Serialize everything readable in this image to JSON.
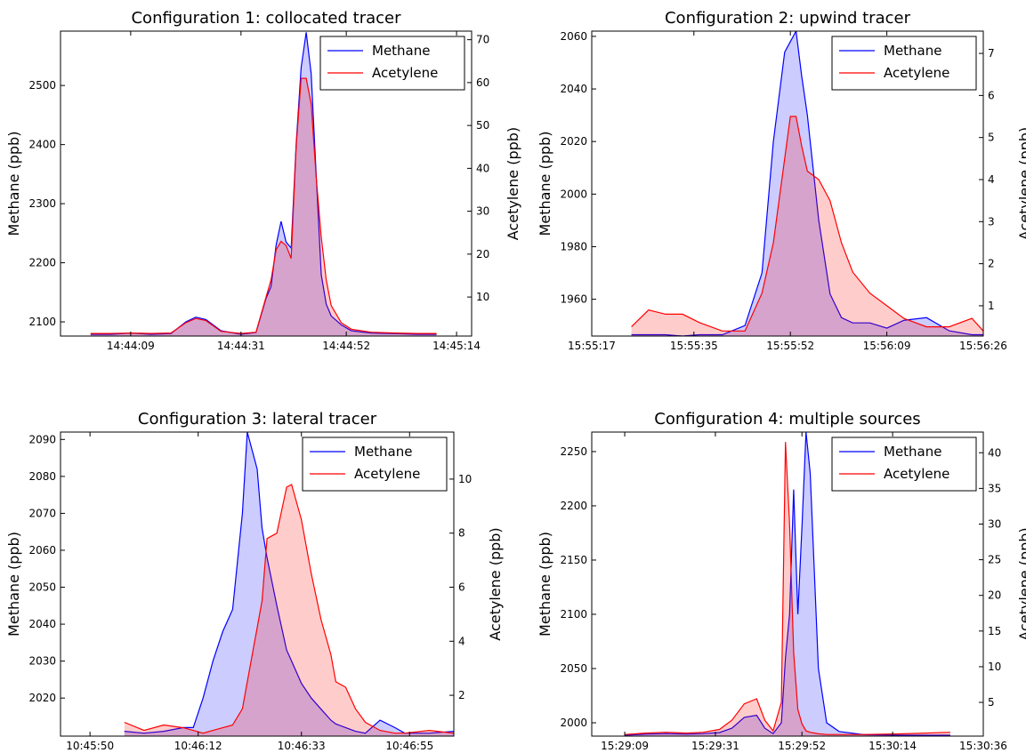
{
  "chart_data": [
    {
      "type": "area-twin",
      "title": "Configuration 1: collocated tracer",
      "ylabel": "Methane (ppb)",
      "y2label": "Acetylene (ppb)",
      "legend": "upper right",
      "x": [
        "14:44:01",
        "14:44:05",
        "14:44:09",
        "14:44:13",
        "14:44:17",
        "14:44:20",
        "14:44:22",
        "14:44:24",
        "14:44:27",
        "14:44:31",
        "14:44:34",
        "14:44:36",
        "14:44:37",
        "14:44:38",
        "14:44:39",
        "14:44:40",
        "14:44:41",
        "14:44:42",
        "14:44:43",
        "14:44:44",
        "14:44:45",
        "14:44:46",
        "14:44:47",
        "14:44:48",
        "14:44:49",
        "14:44:51",
        "14:44:53",
        "14:44:57",
        "14:45:02",
        "14:45:06",
        "14:45:10"
      ],
      "series": [
        {
          "name": "Methane",
          "color": "#0000ff",
          "values": [
            2079,
            2079,
            2081,
            2079,
            2080,
            2100,
            2108,
            2104,
            2085,
            2079,
            2082,
            2140,
            2160,
            2230,
            2270,
            2235,
            2225,
            2400,
            2530,
            2590,
            2520,
            2350,
            2180,
            2130,
            2110,
            2095,
            2085,
            2081,
            2080,
            2079,
            2079
          ]
        },
        {
          "name": "Acetylene",
          "color": "#ff0000",
          "axis": "y2",
          "values": [
            1.5,
            1.5,
            1.6,
            1.5,
            1.6,
            4,
            5,
            4.5,
            2,
            1.5,
            1.8,
            10,
            14,
            21,
            23,
            22,
            19,
            45,
            61,
            61,
            55,
            38,
            24,
            14,
            8,
            4,
            2.5,
            1.8,
            1.6,
            1.5,
            1.5
          ]
        }
      ],
      "xlim": [
        "14:43:55",
        "14:45:17"
      ],
      "xticks": [
        "14:44:09",
        "14:44:31",
        "14:44:52",
        "14:45:14"
      ],
      "ylim": [
        2076,
        2592
      ],
      "yticks": [
        2100,
        2200,
        2300,
        2400,
        2500
      ],
      "y2lim": [
        0.9,
        72
      ],
      "y2ticks": [
        10,
        20,
        30,
        40,
        50,
        60,
        70
      ]
    },
    {
      "type": "area-twin",
      "title": "Configuration 2: upwind tracer",
      "ylabel": "Methane (ppb)",
      "y2label": "Acetylene (ppb)",
      "legend": "upper right",
      "x": [
        "15:55:24",
        "15:55:27",
        "15:55:30",
        "15:55:33",
        "15:55:36",
        "15:55:40",
        "15:55:44",
        "15:55:47",
        "15:55:49",
        "15:55:51",
        "15:55:52",
        "15:55:53",
        "15:55:54",
        "15:55:55",
        "15:55:57",
        "15:55:59",
        "15:56:01",
        "15:56:03",
        "15:56:06",
        "15:56:09",
        "15:56:12",
        "15:56:16",
        "15:56:20",
        "15:56:24",
        "15:56:26"
      ],
      "series": [
        {
          "name": "Methane",
          "color": "#0000ff",
          "values": [
            1946.5,
            1946.5,
            1946.5,
            1946,
            1946.5,
            1946.5,
            1950,
            1970,
            2020,
            2054,
            2058,
            2062,
            2045,
            2030,
            1990,
            1962,
            1953,
            1951,
            1951,
            1949,
            1952,
            1953,
            1948,
            1946.5,
            1946.5
          ]
        },
        {
          "name": "Acetylene",
          "color": "#ff0000",
          "axis": "y2",
          "values": [
            0.5,
            0.9,
            0.8,
            0.8,
            0.6,
            0.4,
            0.4,
            1.3,
            2.5,
            4.5,
            5.5,
            5.5,
            4.8,
            4.2,
            4.0,
            3.5,
            2.5,
            1.8,
            1.3,
            1.0,
            0.7,
            0.5,
            0.5,
            0.7,
            0.4
          ]
        }
      ],
      "xlim": [
        "15:55:17",
        "15:56:26"
      ],
      "xticks": [
        "15:55:17",
        "15:55:35",
        "15:55:52",
        "15:56:09",
        "15:56:26"
      ],
      "ylim": [
        1946,
        2062
      ],
      "yticks": [
        1960,
        1980,
        2000,
        2020,
        2040,
        2060
      ],
      "y2lim": [
        0.28,
        7.53
      ],
      "y2ticks": [
        1,
        2,
        3,
        4,
        5,
        6,
        7
      ]
    },
    {
      "type": "area-twin",
      "title": "Configuration 3: lateral tracer",
      "ylabel": "Methane (ppb)",
      "y2label": "Acetylene (ppb)",
      "legend": "upper right",
      "x": [
        "10:45:57",
        "10:46:01",
        "10:46:05",
        "10:46:09",
        "10:46:11",
        "10:46:13",
        "10:46:15",
        "10:46:17",
        "10:46:19",
        "10:46:21",
        "10:46:22",
        "10:46:24",
        "10:46:25",
        "10:46:26",
        "10:46:28",
        "10:46:30",
        "10:46:31",
        "10:46:33",
        "10:46:35",
        "10:46:37",
        "10:46:39",
        "10:46:40",
        "10:46:42",
        "10:46:44",
        "10:46:46",
        "10:46:49",
        "10:46:52",
        "10:46:54",
        "10:46:59",
        "10:47:04"
      ],
      "series": [
        {
          "name": "Methane",
          "color": "#0000ff",
          "values": [
            2011,
            2010.5,
            2011,
            2012,
            2012,
            2020,
            2030,
            2038,
            2044,
            2070,
            2092,
            2082,
            2066,
            2058,
            2045,
            2033,
            2030,
            2024,
            2020,
            2017,
            2014,
            2013,
            2012,
            2011,
            2010.5,
            2014,
            2012,
            2010.5,
            2010.5,
            2011
          ]
        },
        {
          "name": "Acetylene",
          "color": "#ff0000",
          "axis": "y2",
          "values": [
            1.0,
            0.7,
            0.9,
            0.8,
            0.7,
            0.6,
            0.7,
            0.8,
            0.9,
            1.5,
            2.5,
            4.5,
            5.5,
            7.8,
            8,
            9.7,
            9.8,
            8.5,
            6.5,
            4.8,
            3.5,
            2.5,
            2.3,
            1.5,
            1.0,
            0.7,
            0.6,
            0.6,
            0.7,
            0.6
          ]
        }
      ],
      "xlim": [
        "10:45:44",
        "10:47:04"
      ],
      "xticks": [
        "10:45:50",
        "10:46:12",
        "10:46:33",
        "10:46:55"
      ],
      "ylim": [
        2009.7,
        2092
      ],
      "yticks": [
        2020,
        2030,
        2040,
        2050,
        2060,
        2070,
        2080,
        2090
      ],
      "y2lim": [
        0.49,
        11.74
      ],
      "y2ticks": [
        2,
        4,
        6,
        8,
        10
      ]
    },
    {
      "type": "area-twin",
      "title": "Configuration 4: multiple sources",
      "ylabel": "Methane (ppb)",
      "y2label": "Acetylene (ppb)",
      "legend": "upper right",
      "x": [
        "15:29:09",
        "15:29:14",
        "15:29:19",
        "15:29:24",
        "15:29:28",
        "15:29:32",
        "15:29:35",
        "15:29:38",
        "15:29:41",
        "15:29:43",
        "15:29:45",
        "15:29:47",
        "15:29:48",
        "15:29:49",
        "15:29:50",
        "15:29:51",
        "15:29:52",
        "15:29:53",
        "15:29:54",
        "15:29:56",
        "15:29:58",
        "15:30:01",
        "15:30:07",
        "15:30:17",
        "15:30:28"
      ],
      "series": [
        {
          "name": "Methane",
          "color": "#0000ff",
          "values": [
            1988.5,
            1989.5,
            1990,
            1989.5,
            1990,
            1991,
            1995,
            2005,
            2007,
            1995,
            1990,
            2000,
            2060,
            2100,
            2215,
            2100,
            2180,
            2268,
            2230,
            2050,
            2000,
            1992,
            1989,
            1988.5,
            1988.5
          ]
        },
        {
          "name": "Acetylene",
          "color": "#ff0000",
          "axis": "y2",
          "values": [
            0.5,
            0.7,
            0.8,
            0.7,
            0.8,
            1.2,
            2.5,
            4.8,
            5.5,
            2.5,
            1,
            5,
            41.5,
            30,
            12,
            4,
            2,
            1,
            0.8,
            0.6,
            0.5,
            0.5,
            0.5,
            0.6,
            0.8
          ]
        }
      ],
      "xlim": [
        "15:29:01",
        "15:30:36"
      ],
      "xticks": [
        "15:29:09",
        "15:29:31",
        "15:29:52",
        "15:30:14",
        "15:30:36"
      ],
      "ylim": [
        1987.7,
        2268
      ],
      "yticks": [
        2000,
        2050,
        2100,
        2150,
        2200,
        2250
      ],
      "y2lim": [
        0.27,
        42.9
      ],
      "y2ticks": [
        5,
        10,
        15,
        20,
        25,
        30,
        35,
        40
      ]
    }
  ]
}
